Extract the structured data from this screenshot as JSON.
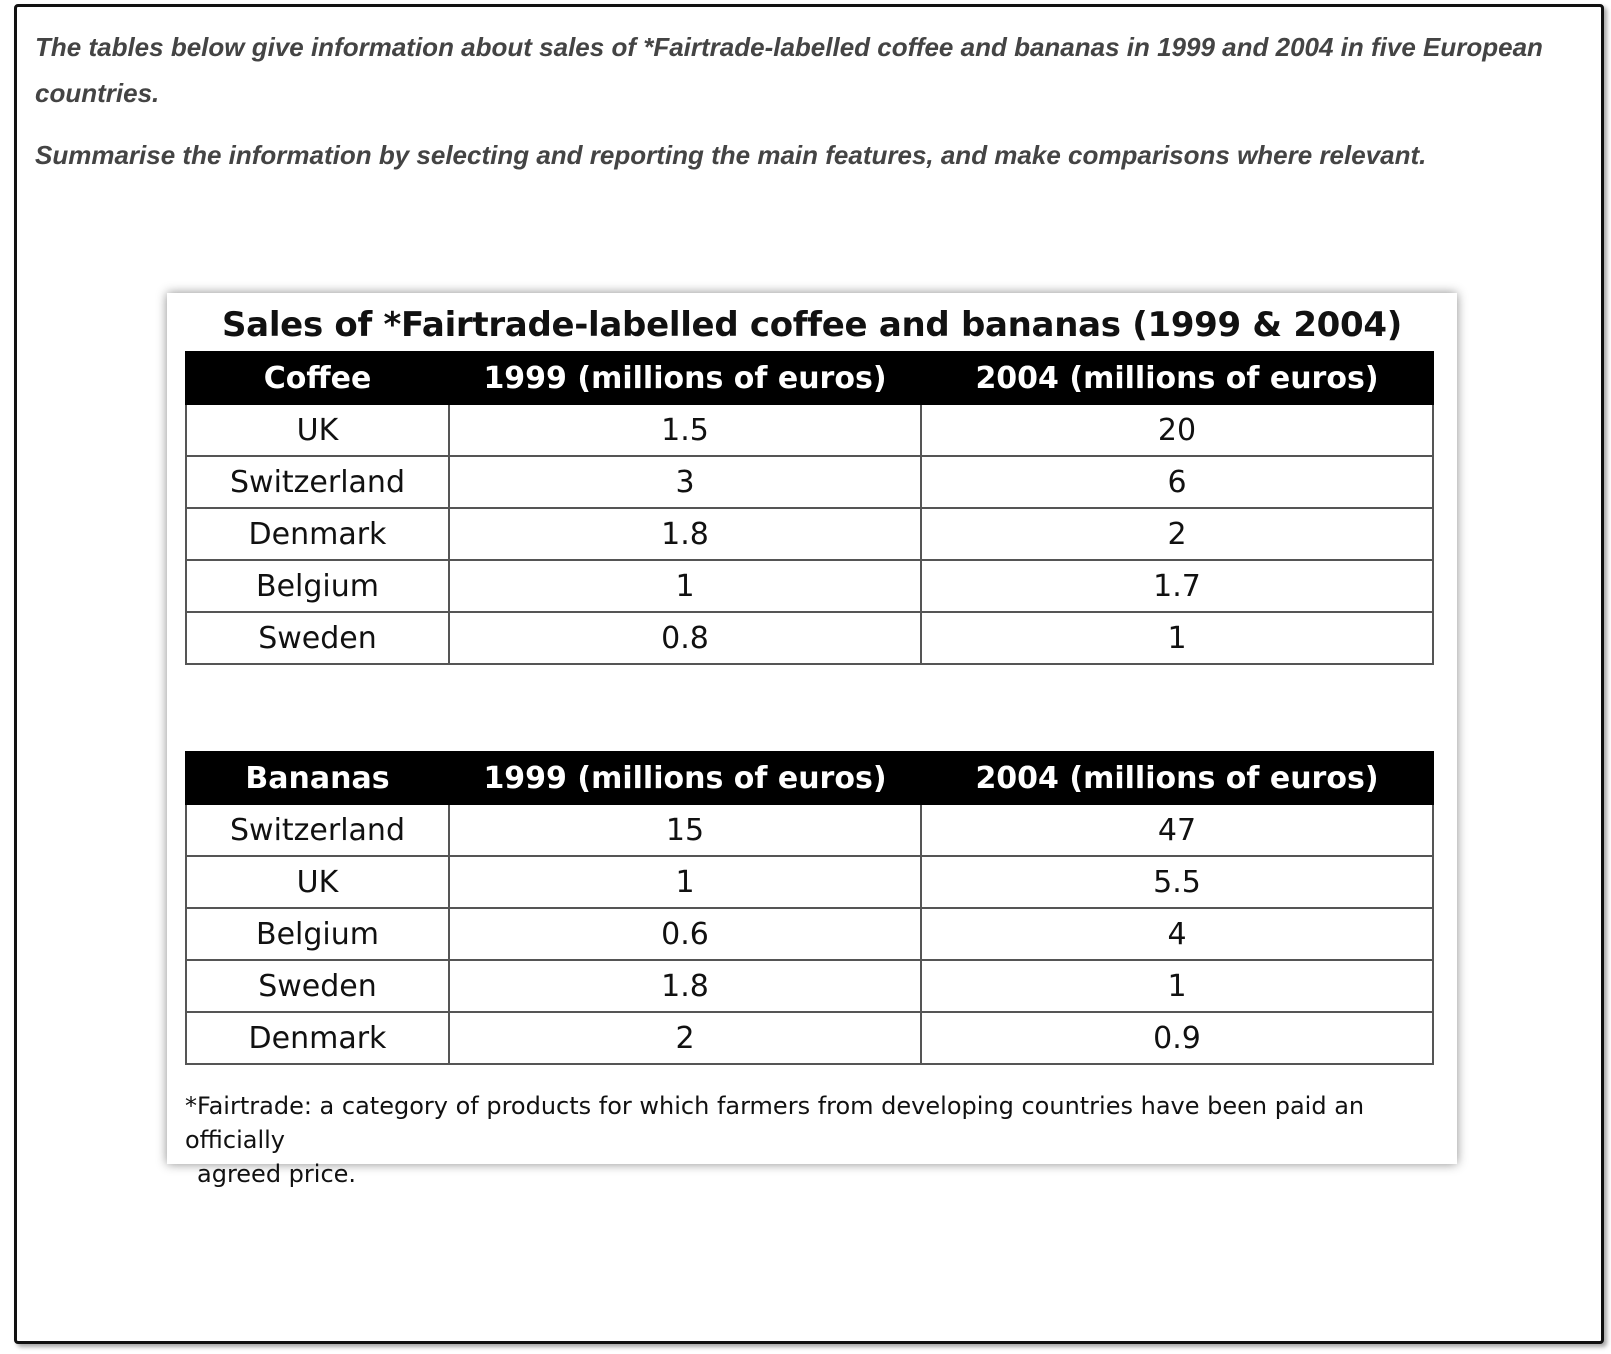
{
  "prompt": {
    "line1": "The tables below give information about sales of *Fairtrade-labelled coffee and bananas in 1999 and 2004 in five European countries.",
    "line2": "Summarise the information by selecting and reporting the main features, and make comparisons where relevant."
  },
  "chart_data": [
    {
      "type": "table",
      "title": "Sales of *Fairtrade-labelled coffee and bananas (1999 & 2004)",
      "columns": [
        "Coffee",
        "1999 (millions of euros)",
        "2004 (millions of euros)"
      ],
      "rows": [
        [
          "UK",
          "1.5",
          "20"
        ],
        [
          "Switzerland",
          "3",
          "6"
        ],
        [
          "Denmark",
          "1.8",
          "2"
        ],
        [
          "Belgium",
          "1",
          "1.7"
        ],
        [
          "Sweden",
          "0.8",
          "1"
        ]
      ]
    },
    {
      "type": "table",
      "columns": [
        "Bananas",
        "1999 (millions of euros)",
        "2004 (millions of euros)"
      ],
      "rows": [
        [
          "Switzerland",
          "15",
          "47"
        ],
        [
          "UK",
          "1",
          "5.5"
        ],
        [
          "Belgium",
          "0.6",
          "4"
        ],
        [
          "Sweden",
          "1.8",
          "1"
        ],
        [
          "Denmark",
          "2",
          "0.9"
        ]
      ]
    }
  ],
  "footnote": {
    "line1": "*Fairtrade: a category of products for which farmers from developing countries have been paid an officially",
    "line2": "agreed price."
  }
}
